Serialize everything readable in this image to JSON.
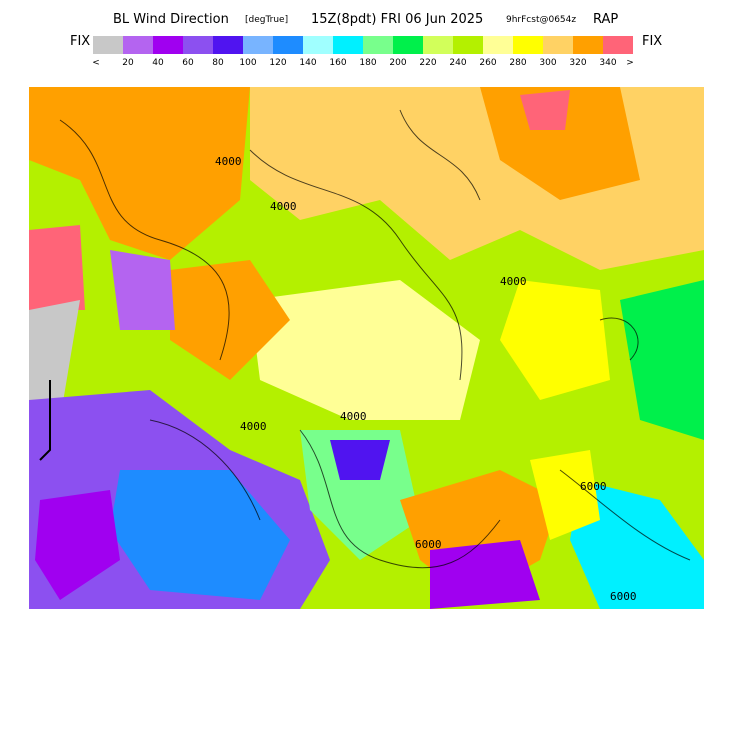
{
  "header": {
    "title": "BL Wind Direction",
    "units": "[degTrue]",
    "valid": "15Z(8pdt) FRI 06 Jun 2025",
    "forecast": "9hrFcst@0654z",
    "model": "RAP"
  },
  "legend": {
    "left_label": "FIX",
    "right_label": "FIX",
    "colors": [
      "#c8c8c8",
      "#b464f0",
      "#a000f0",
      "#8c50f0",
      "#5014f0",
      "#78b4ff",
      "#1e8cff",
      "#a0ffff",
      "#00f0ff",
      "#78ff8c",
      "#00f04b",
      "#d2ff5a",
      "#b4f000",
      "#ffff96",
      "#ffff00",
      "#ffd264",
      "#ffa000",
      "#ff6478"
    ],
    "labels": [
      "<",
      20,
      40,
      60,
      80,
      100,
      120,
      140,
      160,
      180,
      200,
      220,
      240,
      260,
      280,
      300,
      320,
      340,
      ">"
    ]
  },
  "contour_labels": [
    "4000",
    "4000",
    "4000",
    "6000",
    "4000",
    "4000",
    "6000",
    "6000"
  ]
}
